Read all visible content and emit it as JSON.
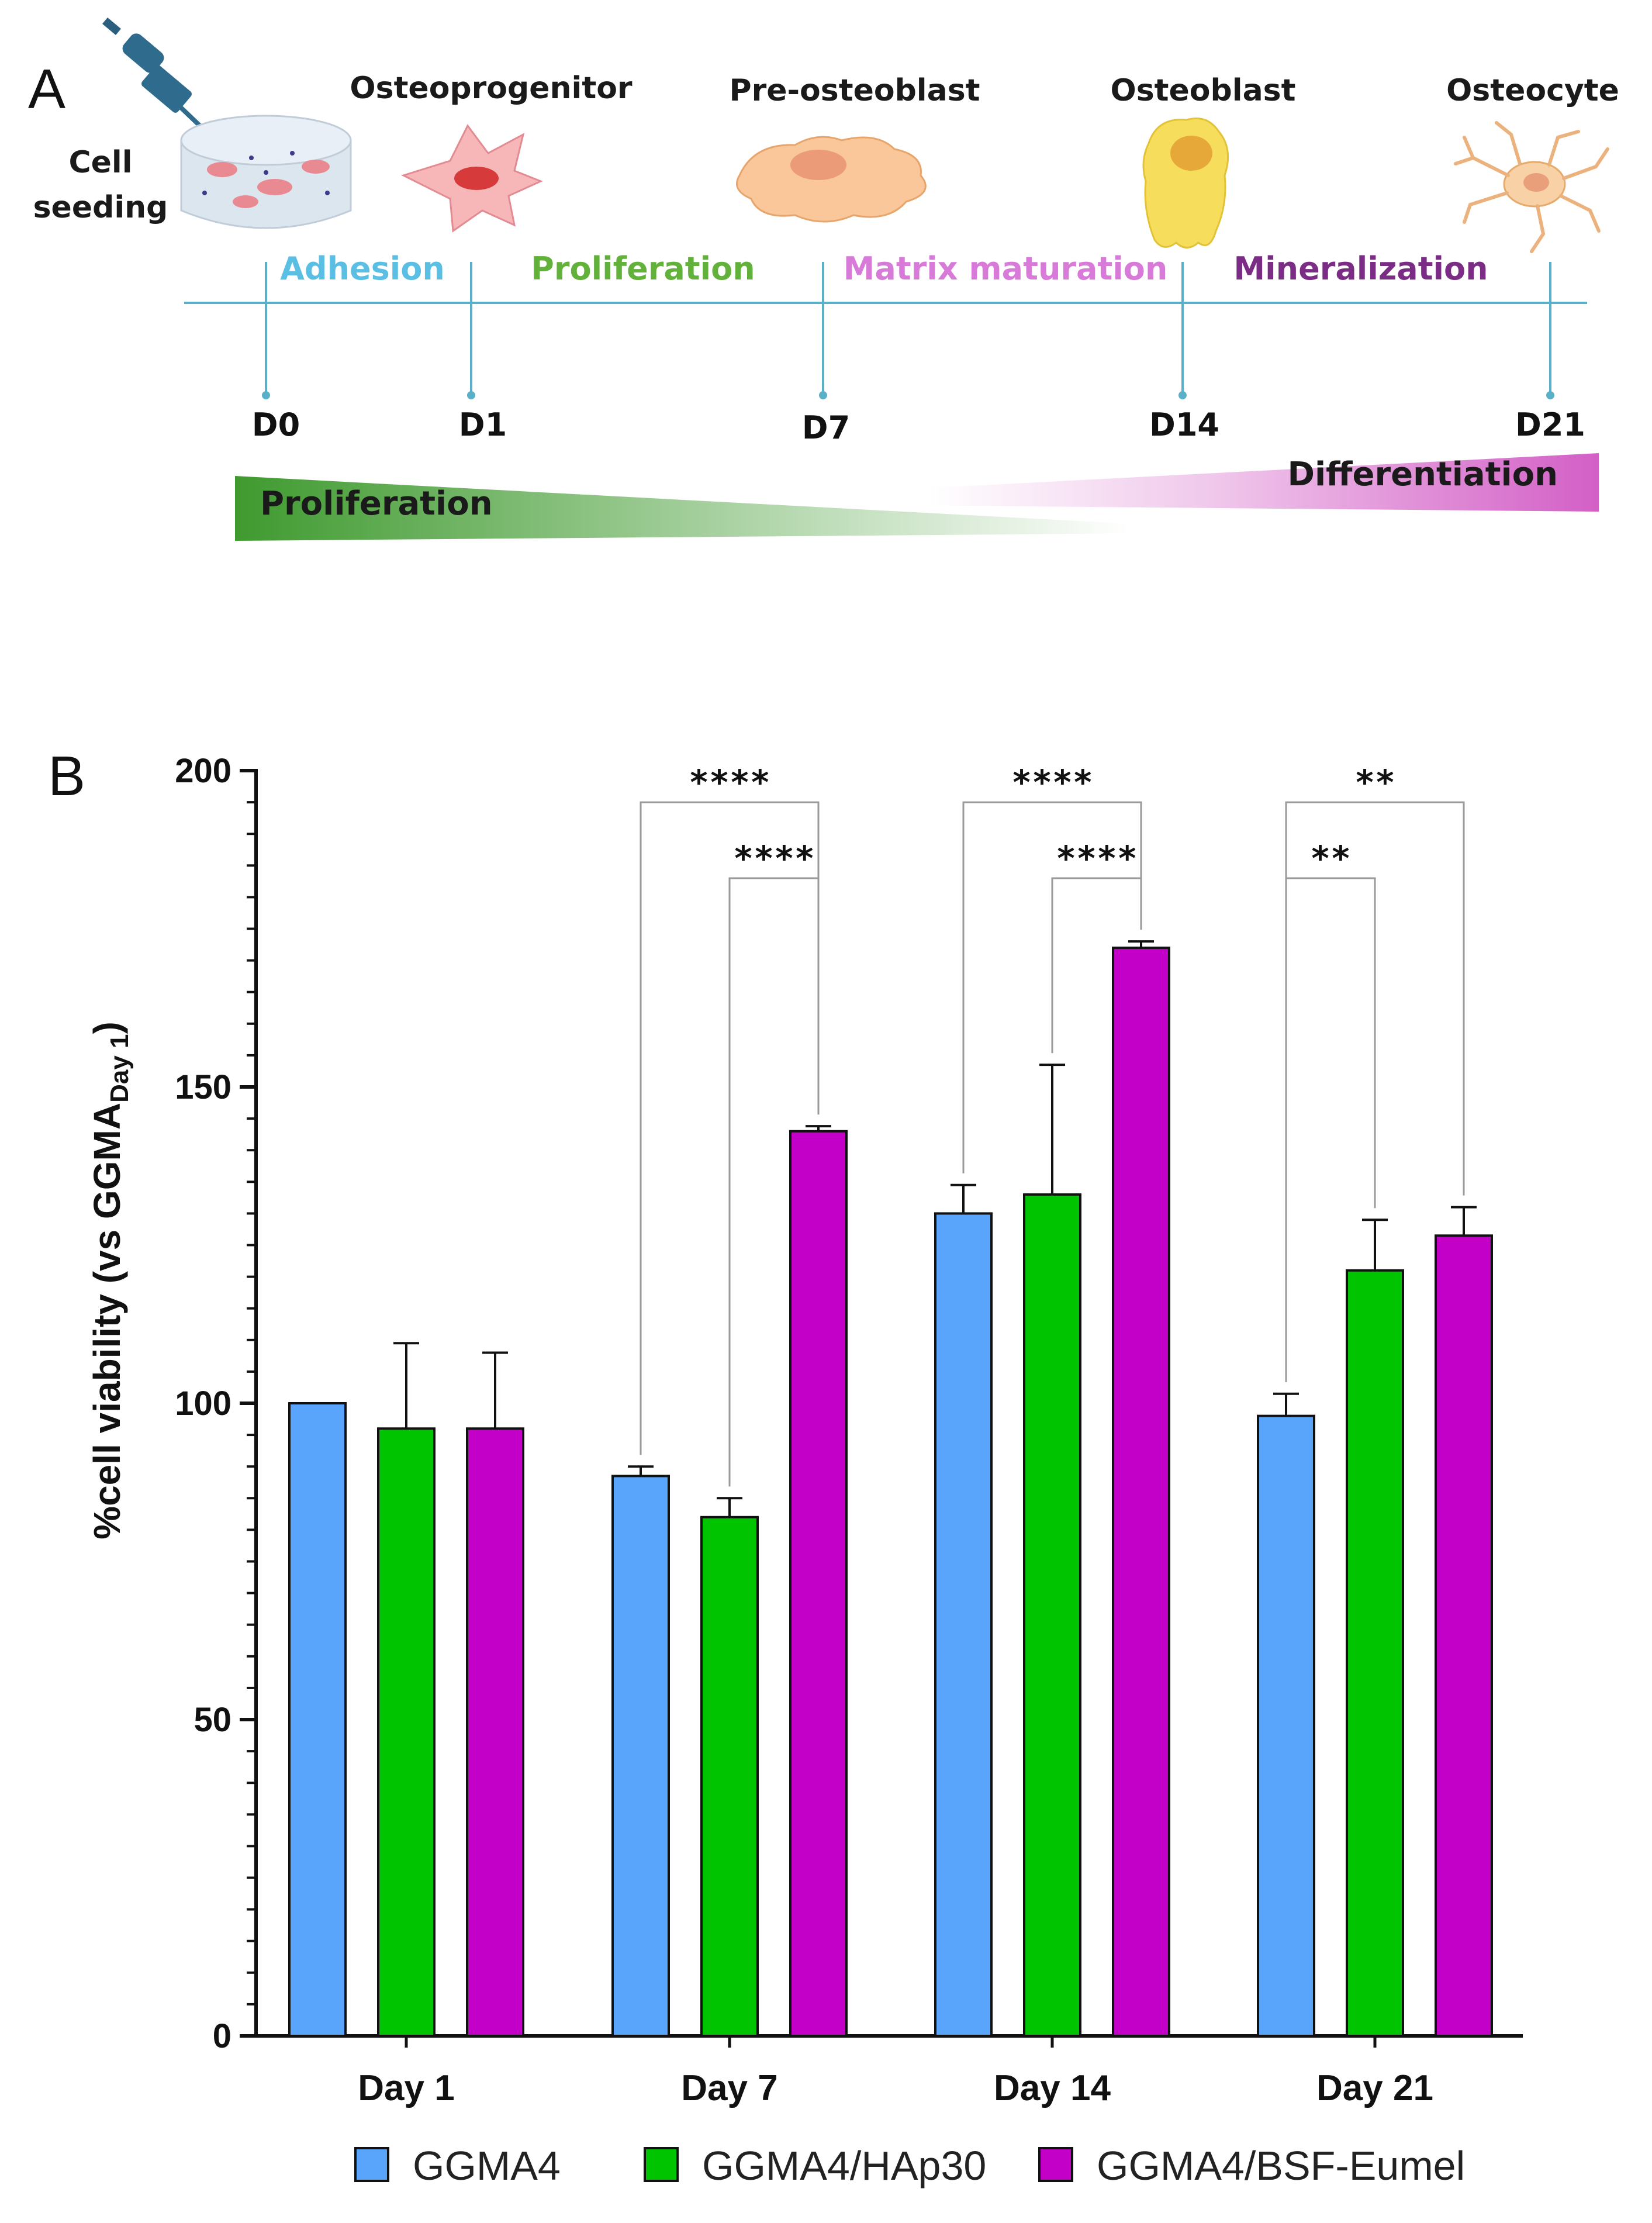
{
  "panel_a": {
    "letter": "A",
    "seeding_label_line1": "Cell",
    "seeding_label_line2": "seeding",
    "stages": [
      "Osteoprogenitor",
      "Pre-osteoblast",
      "Osteoblast",
      "Osteocyte"
    ],
    "phases": [
      {
        "label": "Adhesion",
        "color": "#5bbfe3"
      },
      {
        "label": "Proliferation",
        "color": "#62b13a"
      },
      {
        "label": "Matrix maturation",
        "color": "#d77ad8"
      },
      {
        "label": "Mineralization",
        "color": "#7b2d86"
      }
    ],
    "days": [
      "D0",
      "D1",
      "D7",
      "D14",
      "D21"
    ],
    "gradient_left_label": "Proliferation",
    "gradient_right_label": "Differentiation",
    "timeline_color": "#5aafc9",
    "gradient_green": "#3f9a2f",
    "gradient_pink": "#d35fc6"
  },
  "panel_b": {
    "letter": "B"
  },
  "chart_data": {
    "type": "bar",
    "title": "",
    "xlabel": "",
    "ylabel": "%cell viability (vs GGMA",
    "ylabel_subscript": "Day 1",
    "ylabel_close": ")",
    "ylim": [
      0,
      200
    ],
    "yticks": [
      0,
      50,
      100,
      150,
      200
    ],
    "categories": [
      "Day 1",
      "Day 7",
      "Day 14",
      "Day 21"
    ],
    "series": [
      {
        "name": "GGMA4",
        "color": "#58a5fb",
        "values": [
          100,
          88.5,
          130,
          98
        ],
        "errors": [
          0,
          1.5,
          4.5,
          3.5
        ]
      },
      {
        "name": "GGMA4/HAp30",
        "color": "#00c400",
        "values": [
          96,
          82,
          133,
          121
        ],
        "errors": [
          13.5,
          3,
          20.5,
          8
        ]
      },
      {
        "name": "GGMA4/BSF-Eumel",
        "color": "#c200c8",
        "values": [
          96,
          143,
          172,
          126.5
        ],
        "errors": [
          12,
          0.8,
          1,
          4.5
        ]
      }
    ],
    "significance": [
      {
        "category": 1,
        "from": 0,
        "to": 2,
        "level": 1,
        "label": "****"
      },
      {
        "category": 1,
        "from": 1,
        "to": 2,
        "level": 0,
        "label": "****"
      },
      {
        "category": 2,
        "from": 0,
        "to": 2,
        "level": 1,
        "label": "****"
      },
      {
        "category": 2,
        "from": 1,
        "to": 2,
        "level": 0,
        "label": "****"
      },
      {
        "category": 3,
        "from": 0,
        "to": 2,
        "level": 1,
        "label": "**"
      },
      {
        "category": 3,
        "from": 0,
        "to": 1,
        "level": 0,
        "label": "**"
      }
    ],
    "legend_position": "bottom"
  }
}
